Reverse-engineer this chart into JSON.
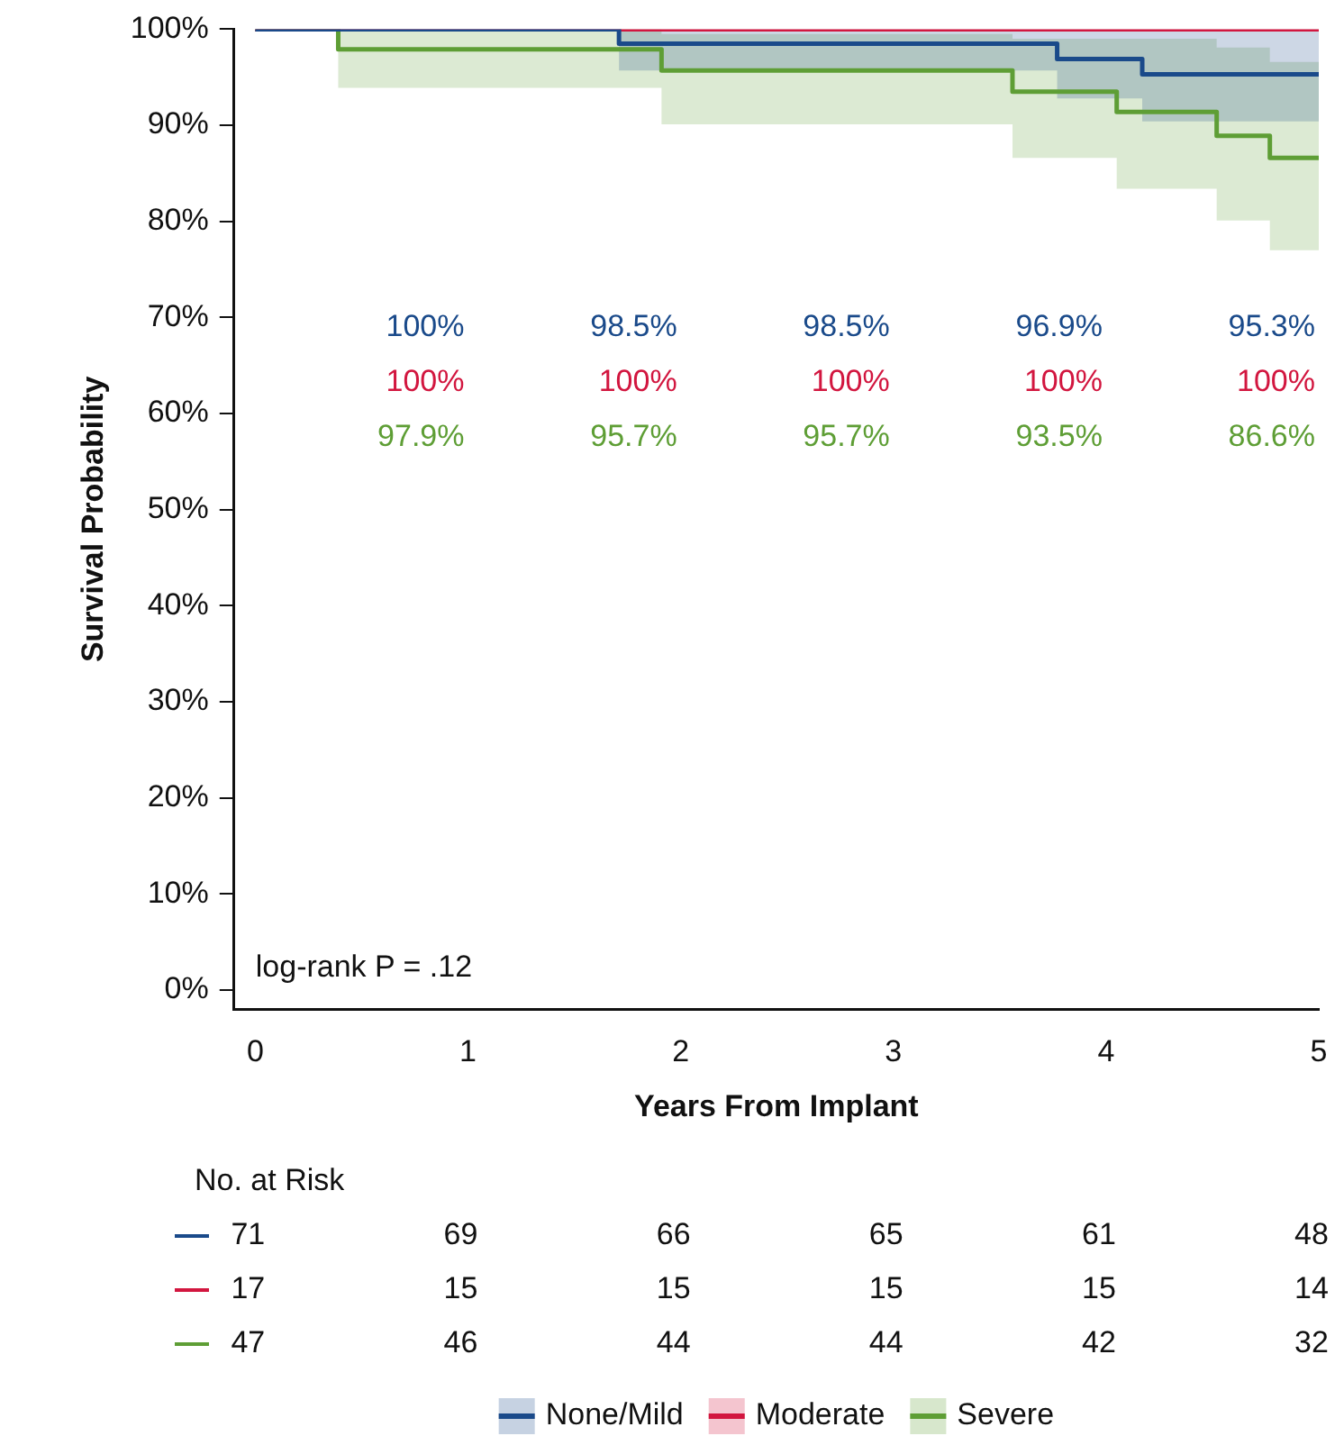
{
  "chart_data": {
    "type": "step",
    "xlabel": "Years From Implant",
    "ylabel": "Survival Probability",
    "xlim": [
      -0.1,
      5
    ],
    "xticks": [
      0,
      1,
      2,
      3,
      4,
      5
    ],
    "ylim": [
      -2,
      100
    ],
    "yticks": [
      {
        "value": 0,
        "label": "0%"
      },
      {
        "value": 10,
        "label": "10%"
      },
      {
        "value": 20,
        "label": "20%"
      },
      {
        "value": 30,
        "label": "30%"
      },
      {
        "value": 40,
        "label": "40%"
      },
      {
        "value": 50,
        "label": "50%"
      },
      {
        "value": 60,
        "label": "60%"
      },
      {
        "value": 70,
        "label": "70%"
      },
      {
        "value": 80,
        "label": "80%"
      },
      {
        "value": 90,
        "label": "90%"
      },
      {
        "value": 100,
        "label": "100%"
      }
    ],
    "legend": "bottom",
    "grid": false,
    "series": [
      {
        "name": "None/Mild",
        "color": "#1a4a8a",
        "x": [
          0,
          1.71,
          3.77,
          4.17,
          5
        ],
        "values": [
          100,
          98.5,
          96.9,
          95.3,
          95.3
        ],
        "lower": [
          100,
          95.7,
          92.8,
          90.4,
          90.4
        ],
        "upper": [
          100,
          100,
          100,
          100,
          100
        ]
      },
      {
        "name": "Moderate",
        "color": "#d2163f",
        "x": [
          0,
          5
        ],
        "values": [
          100,
          100
        ]
      },
      {
        "name": "Severe",
        "color": "#5e9e35",
        "x": [
          0,
          0.39,
          1.91,
          3.56,
          4.05,
          4.52,
          4.77,
          5
        ],
        "values": [
          100,
          97.9,
          95.7,
          93.5,
          91.4,
          88.9,
          86.6,
          86.6
        ],
        "lower": [
          100,
          93.9,
          90.1,
          86.6,
          83.4,
          80.1,
          77.0,
          77.0
        ],
        "upper": [
          100,
          100,
          99.5,
          99,
          99,
          98.1,
          96.6,
          96.6
        ]
      }
    ],
    "annotations": [
      "log-rank P = .12",
      "100%",
      "98.5%",
      "98.5%",
      "96.9%",
      "95.3%",
      "100%",
      "100%",
      "100%",
      "100%",
      "100%",
      "97.9%",
      "95.7%",
      "95.7%",
      "93.5%",
      "86.6%",
      "No. at Risk",
      "71",
      "69",
      "66",
      "65",
      "61",
      "48",
      "17",
      "15",
      "15",
      "15",
      "15",
      "14",
      "47",
      "46",
      "44",
      "44",
      "42",
      "32"
    ]
  }
}
